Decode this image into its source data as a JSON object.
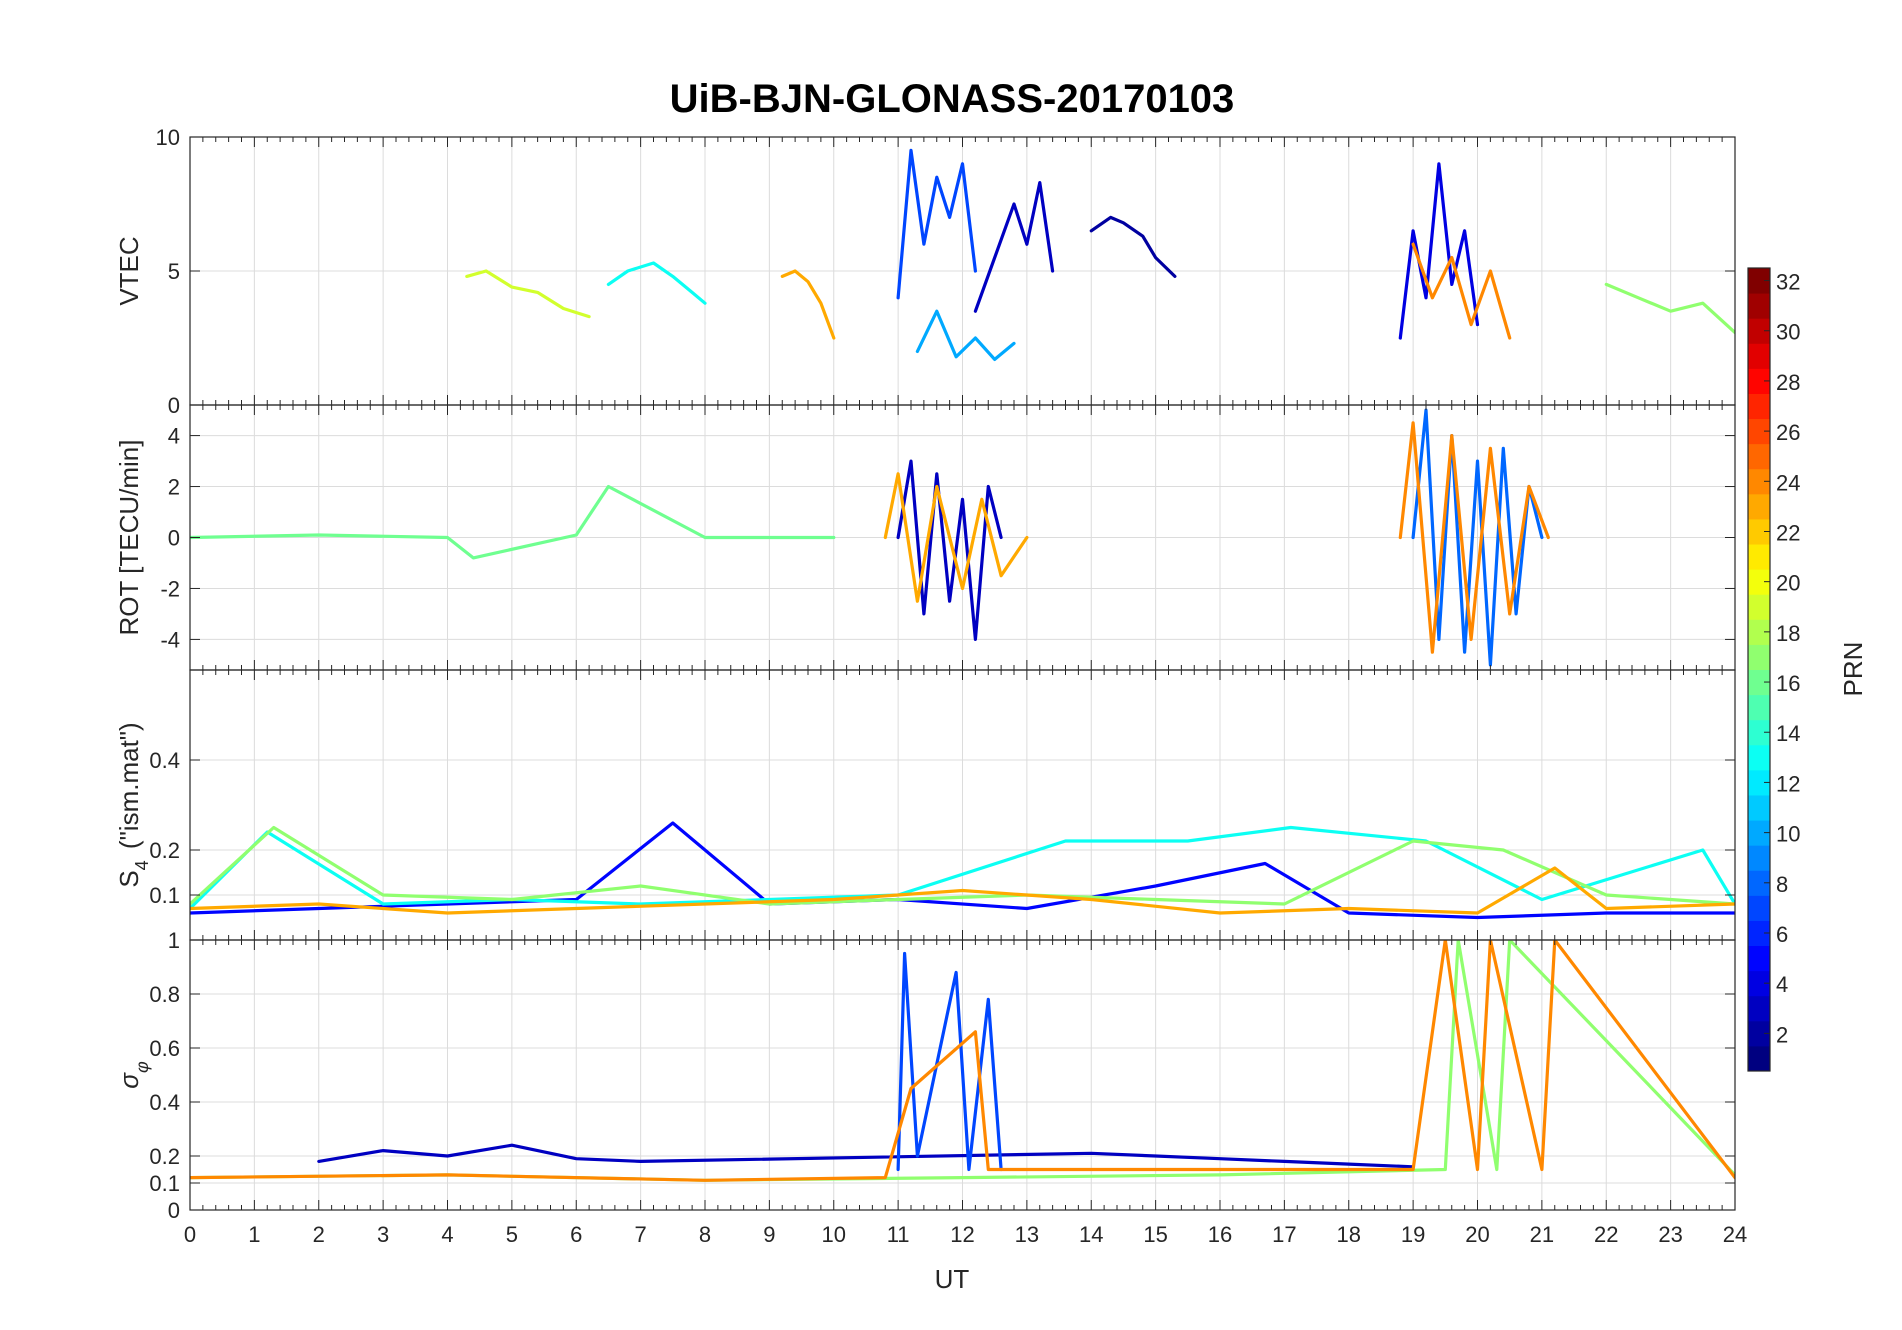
{
  "figure": {
    "title": "UiB-BJN-GLONASS-20170103",
    "xlabel": "UT",
    "colorbar_label": "PRN"
  },
  "chart_data": [
    {
      "type": "line",
      "panel": "vtec",
      "ylabel": "VTEC",
      "ylim": [
        0,
        10
      ],
      "yticks": [
        0,
        5,
        10
      ],
      "xlim": [
        0,
        24
      ],
      "xticks": [
        0,
        1,
        2,
        3,
        4,
        5,
        6,
        7,
        8,
        9,
        10,
        11,
        12,
        13,
        14,
        15,
        16,
        17,
        18,
        19,
        20,
        21,
        22,
        23,
        24
      ],
      "grid": true,
      "series": [
        {
          "prn": 2,
          "x": [
            14.0,
            14.3,
            14.5,
            14.8,
            15.0,
            15.3
          ],
          "y": [
            6.5,
            7.0,
            6.8,
            6.3,
            5.5,
            4.8
          ]
        },
        {
          "prn": 3,
          "x": [
            12.2,
            12.5,
            12.8,
            13.0,
            13.2,
            13.4
          ],
          "y": [
            3.5,
            5.5,
            7.5,
            6.0,
            8.3,
            5.0
          ]
        },
        {
          "prn": 4,
          "x": [
            18.8,
            19.0,
            19.2,
            19.4,
            19.6,
            19.8,
            20.0
          ],
          "y": [
            2.5,
            6.5,
            4.0,
            9.0,
            4.5,
            6.5,
            3.0
          ]
        },
        {
          "prn": 7,
          "x": [
            11.0,
            11.2,
            11.4,
            11.6,
            11.8,
            12.0,
            12.2
          ],
          "y": [
            4.0,
            9.5,
            6.0,
            8.5,
            7.0,
            9.0,
            5.0
          ]
        },
        {
          "prn": 10,
          "x": [
            11.3,
            11.6,
            11.9,
            12.2,
            12.5,
            12.8
          ],
          "y": [
            2.0,
            3.5,
            1.8,
            2.5,
            1.7,
            2.3
          ]
        },
        {
          "prn": 13,
          "x": [
            6.5,
            6.8,
            7.2,
            7.5,
            7.8,
            8.0
          ],
          "y": [
            4.5,
            5.0,
            5.3,
            4.8,
            4.2,
            3.8
          ]
        },
        {
          "prn": 17,
          "x": [
            22.0,
            22.5,
            23.0,
            23.5,
            24.0
          ],
          "y": [
            4.5,
            4.0,
            3.5,
            3.8,
            2.7
          ]
        },
        {
          "prn": 19,
          "x": [
            4.3,
            4.6,
            5.0,
            5.4,
            5.8,
            6.2
          ],
          "y": [
            4.8,
            5.0,
            4.4,
            4.2,
            3.6,
            3.3
          ]
        },
        {
          "prn": 23,
          "x": [
            9.2,
            9.4,
            9.6,
            9.8,
            10.0
          ],
          "y": [
            4.8,
            5.0,
            4.6,
            3.8,
            2.5
          ]
        },
        {
          "prn": 24,
          "x": [
            19.0,
            19.3,
            19.6,
            19.9,
            20.2,
            20.5
          ],
          "y": [
            6.0,
            4.0,
            5.5,
            3.0,
            5.0,
            2.5
          ]
        }
      ]
    },
    {
      "type": "line",
      "panel": "rot",
      "ylabel": "ROT [TECU/min]",
      "ylim": [
        -5.2,
        5.2
      ],
      "yticks": [
        -4,
        -2,
        0,
        2,
        4
      ],
      "xlim": [
        0,
        24
      ],
      "grid": true,
      "series": [
        {
          "prn": 3,
          "x": [
            11.0,
            11.2,
            11.4,
            11.6,
            11.8,
            12.0,
            12.2,
            12.4,
            12.6
          ],
          "y": [
            0.0,
            3.0,
            -3.0,
            2.5,
            -2.5,
            1.5,
            -4.0,
            2.0,
            0.0
          ]
        },
        {
          "prn": 8,
          "x": [
            19.0,
            19.2,
            19.4,
            19.6,
            19.8,
            20.0,
            20.2,
            20.4,
            20.6,
            20.8,
            21.0
          ],
          "y": [
            0.0,
            5.0,
            -4.0,
            4.0,
            -4.5,
            3.0,
            -5.0,
            3.5,
            -3.0,
            2.0,
            0.0
          ]
        },
        {
          "prn": 16,
          "x": [
            0,
            2,
            4,
            4.4,
            6,
            6.5,
            8,
            10
          ],
          "y": [
            0.0,
            0.1,
            0.0,
            -0.8,
            0.1,
            2.0,
            0.0,
            0.0
          ]
        },
        {
          "prn": 23,
          "x": [
            10.8,
            11.0,
            11.3,
            11.6,
            12.0,
            12.3,
            12.6,
            13.0
          ],
          "y": [
            0.0,
            2.5,
            -2.5,
            2.0,
            -2.0,
            1.5,
            -1.5,
            0.0
          ]
        },
        {
          "prn": 24,
          "x": [
            18.8,
            19.0,
            19.3,
            19.6,
            19.9,
            20.2,
            20.5,
            20.8,
            21.1
          ],
          "y": [
            0.0,
            4.5,
            -4.5,
            4.0,
            -4.0,
            3.5,
            -3.0,
            2.0,
            0.0
          ]
        }
      ]
    },
    {
      "type": "line",
      "panel": "s4",
      "ylabel": "S4 (\"ism.mat\")",
      "ylim": [
        0,
        0.6
      ],
      "yticks": [
        0.1,
        0.2,
        0.4
      ],
      "xlim": [
        0,
        24
      ],
      "grid": true,
      "series": [
        {
          "prn": 5,
          "x": [
            0,
            2,
            4,
            6,
            7.5,
            9,
            11,
            13,
            15,
            16.7,
            18,
            20,
            22,
            24
          ],
          "y": [
            0.06,
            0.07,
            0.08,
            0.09,
            0.26,
            0.08,
            0.09,
            0.07,
            0.12,
            0.17,
            0.06,
            0.05,
            0.06,
            0.06
          ]
        },
        {
          "prn": 13,
          "x": [
            0,
            1.2,
            3,
            5,
            7,
            9,
            11,
            13.6,
            15.5,
            17.1,
            19.2,
            21,
            23.5,
            24
          ],
          "y": [
            0.07,
            0.24,
            0.08,
            0.09,
            0.08,
            0.09,
            0.1,
            0.22,
            0.22,
            0.25,
            0.22,
            0.09,
            0.2,
            0.08
          ]
        },
        {
          "prn": 17,
          "x": [
            0,
            1.3,
            3,
            5,
            7,
            9,
            11,
            13,
            15,
            17,
            19,
            20.4,
            22,
            24
          ],
          "y": [
            0.08,
            0.25,
            0.1,
            0.09,
            0.12,
            0.08,
            0.09,
            0.1,
            0.09,
            0.08,
            0.22,
            0.2,
            0.1,
            0.08
          ]
        },
        {
          "prn": 23,
          "x": [
            0,
            2,
            4,
            6,
            8,
            10,
            12,
            14,
            16,
            18,
            20,
            21.2,
            22,
            24
          ],
          "y": [
            0.07,
            0.08,
            0.06,
            0.07,
            0.08,
            0.09,
            0.11,
            0.09,
            0.06,
            0.07,
            0.06,
            0.16,
            0.07,
            0.08
          ]
        }
      ]
    },
    {
      "type": "line",
      "panel": "sigma_phi",
      "ylabel": "σφ",
      "ylim": [
        0,
        1
      ],
      "yticks": [
        0,
        0.1,
        0.2,
        0.4,
        0.6,
        0.8,
        1
      ],
      "xlim": [
        0,
        24
      ],
      "grid": true,
      "series": [
        {
          "prn": 3,
          "x": [
            2.0,
            3.0,
            4.0,
            5.0,
            6.0,
            7.0,
            14.0,
            15.0,
            16.0,
            17.0,
            18.0,
            19.0
          ],
          "y": [
            0.18,
            0.22,
            0.2,
            0.24,
            0.19,
            0.18,
            0.21,
            0.2,
            0.19,
            0.18,
            0.17,
            0.16
          ]
        },
        {
          "prn": 7,
          "x": [
            11.0,
            11.1,
            11.3,
            11.9,
            12.1,
            12.4,
            12.6
          ],
          "y": [
            0.15,
            0.95,
            0.2,
            0.88,
            0.15,
            0.78,
            0.15
          ]
        },
        {
          "prn": 17,
          "x": [
            0,
            4,
            8,
            12,
            16,
            19.5,
            19.7,
            20.3,
            20.5,
            24
          ],
          "y": [
            0.12,
            0.13,
            0.11,
            0.12,
            0.13,
            0.15,
            1.0,
            0.15,
            1.0,
            0.13
          ]
        },
        {
          "prn": 24,
          "x": [
            0,
            4,
            8,
            10.8,
            11.2,
            12.2,
            12.4,
            19.0,
            19.5,
            20.0,
            20.2,
            21.0,
            21.2,
            24
          ],
          "y": [
            0.12,
            0.13,
            0.11,
            0.12,
            0.45,
            0.66,
            0.15,
            0.15,
            1.0,
            0.15,
            1.0,
            0.15,
            1.0,
            0.12
          ]
        }
      ]
    }
  ],
  "colorbar": {
    "label": "PRN",
    "min": 1,
    "max": 32,
    "ticks": [
      2,
      4,
      6,
      8,
      10,
      12,
      14,
      16,
      18,
      20,
      22,
      24,
      26,
      28,
      30,
      32
    ],
    "colormap": "jet"
  }
}
